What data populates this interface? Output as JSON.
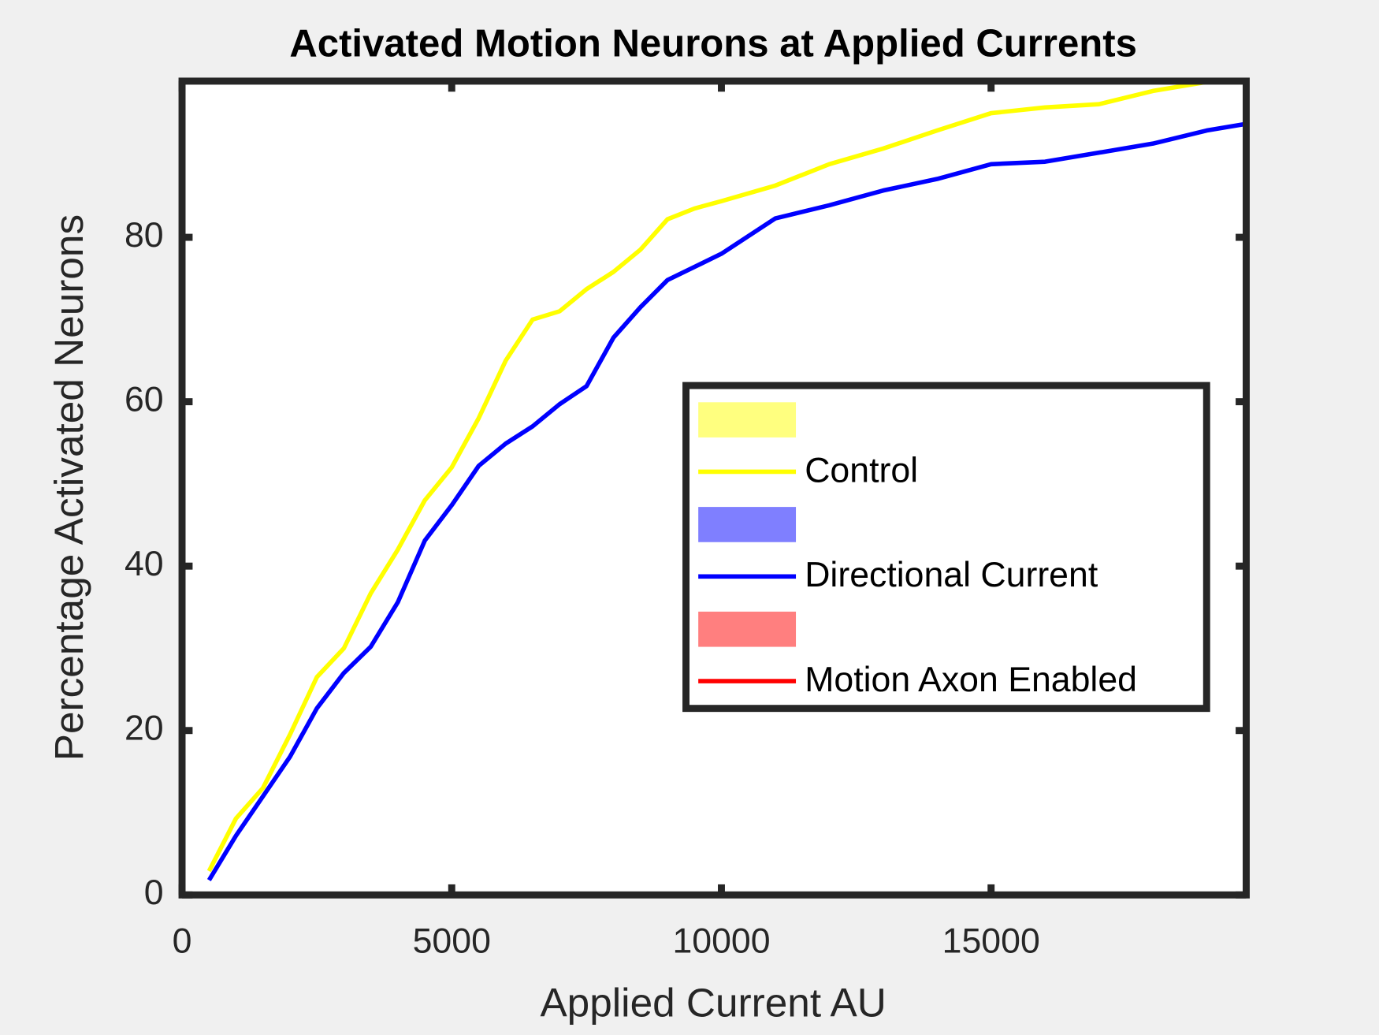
{
  "chart_data": {
    "type": "line",
    "title": "Activated Motion Neurons at Applied Currents",
    "x_label": "Applied Current AU",
    "y_label": "Percentage Activated Neurons",
    "x": [
      500,
      1000,
      1500,
      2000,
      2500,
      3000,
      3500,
      4000,
      4500,
      5000,
      5500,
      6000,
      6500,
      7000,
      7500,
      8000,
      8500,
      9000,
      9500,
      10000,
      11000,
      12000,
      13000,
      14000,
      15000,
      16000,
      17000,
      18000,
      19000,
      19730
    ],
    "series": [
      {
        "name": "Control",
        "color": "#ffff00",
        "values": [
          2.9,
          9.3,
          13,
          19.5,
          26.5,
          30,
          36.7,
          42,
          48,
          52,
          58,
          65,
          70,
          71,
          73.7,
          75.8,
          78.5,
          82.2,
          83.5,
          84.4,
          86.3,
          88.9,
          90.8,
          93,
          95.1,
          95.8,
          96.2,
          97.8,
          98.9,
          98.9
        ]
      },
      {
        "name": "Directional Current",
        "color": "#0000ff",
        "values": [
          1.8,
          7.2,
          12,
          16.8,
          22.7,
          27,
          30.2,
          35.6,
          43.1,
          47.4,
          52.2,
          54.9,
          57,
          59.7,
          61.9,
          67.8,
          71.5,
          74.8,
          76.4,
          78,
          82.3,
          83.9,
          85.7,
          87.1,
          88.9,
          89.2,
          90.3,
          91.4,
          93,
          93.8
        ]
      },
      {
        "name": "Motion Axon Enabled",
        "color": "#ff0000",
        "values": [
          null,
          null,
          null,
          null,
          null,
          null,
          null,
          null,
          null,
          null,
          null,
          null,
          null,
          null,
          null,
          null,
          null,
          null,
          null,
          null,
          null,
          null,
          null,
          null,
          null,
          null,
          null,
          null,
          null,
          null
        ]
      }
    ],
    "xlim": [
      0,
      19730
    ],
    "ylim": [
      0,
      99
    ],
    "xticks": [
      0,
      5000,
      10000,
      15000
    ],
    "yticks": [
      0,
      20,
      40,
      60,
      80
    ],
    "legend": "east"
  }
}
